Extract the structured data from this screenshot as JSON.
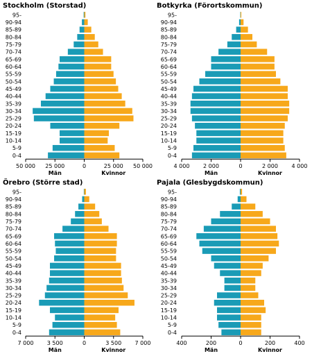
{
  "colors": {
    "men": "#1a9bb6",
    "women": "#f7a81b",
    "axis": "#000000"
  },
  "chart_data": [
    {
      "type": "bar",
      "orientation": "horizontal-pyramid",
      "title": "Stockholm (Storstad)",
      "categories": [
        "0-4",
        "5-9",
        "10-14",
        "15-19",
        "20-24",
        "25-29",
        "30-34",
        "35-39",
        "40-44",
        "45-49",
        "50-54",
        "55-59",
        "60-64",
        "65-69",
        "70-74",
        "75-79",
        "80-84",
        "85-89",
        "90-94",
        "95-"
      ],
      "series": [
        {
          "name": "Män",
          "values": [
            31000,
            27000,
            21000,
            21000,
            29000,
            43000,
            44000,
            37000,
            33000,
            29000,
            26000,
            24000,
            22000,
            21000,
            14000,
            9000,
            6000,
            4000,
            2000,
            500
          ]
        },
        {
          "name": "Kvinnor",
          "values": [
            30000,
            26000,
            20000,
            21000,
            30000,
            42000,
            41000,
            35000,
            32000,
            29000,
            27000,
            25000,
            23000,
            23000,
            16000,
            12000,
            9000,
            6000,
            3000,
            1000
          ]
        }
      ],
      "xlim": [
        -50000,
        50000
      ],
      "ticks": [
        -50000,
        -25000,
        0,
        25000,
        50000
      ],
      "tick_labels": [
        "50 000",
        "25 000",
        "0",
        "25 000",
        "50 000"
      ]
    },
    {
      "type": "bar",
      "orientation": "horizontal-pyramid",
      "title": "Botkyrka (Förortskommun)",
      "categories": [
        "0-4",
        "5-9",
        "10-14",
        "15-19",
        "20-24",
        "25-29",
        "30-34",
        "35-39",
        "40-44",
        "45-49",
        "50-54",
        "55-59",
        "60-64",
        "65-69",
        "70-74",
        "75-79",
        "80-84",
        "85-89",
        "90-94",
        "95-"
      ],
      "series": [
        {
          "name": "Män",
          "values": [
            3300,
            3200,
            3000,
            3000,
            3100,
            3300,
            3400,
            3400,
            3300,
            3200,
            2800,
            2400,
            2000,
            2000,
            1500,
            900,
            600,
            300,
            100,
            20
          ]
        },
        {
          "name": "Kvinnor",
          "values": [
            3100,
            3000,
            2900,
            2900,
            3000,
            3200,
            3300,
            3300,
            3200,
            3200,
            2700,
            2400,
            2300,
            2300,
            1800,
            1100,
            800,
            500,
            200,
            50
          ]
        }
      ],
      "xlim": [
        -4000,
        4000
      ],
      "ticks": [
        -4000,
        -2000,
        0,
        2000,
        4000
      ],
      "tick_labels": [
        "4 000",
        "2 000",
        "0",
        "2 000",
        "4 000"
      ]
    },
    {
      "type": "bar",
      "orientation": "horizontal-pyramid",
      "title": "Örebro (Större stad)",
      "categories": [
        "0-4",
        "5-9",
        "10-14",
        "15-19",
        "20-24",
        "25-29",
        "30-34",
        "35-39",
        "40-44",
        "45-49",
        "50-54",
        "55-59",
        "60-64",
        "65-69",
        "70-74",
        "75-79",
        "80-84",
        "85-89",
        "90-94",
        "95-"
      ],
      "series": [
        {
          "name": "Män",
          "values": [
            4200,
            3800,
            3500,
            4100,
            5400,
            4700,
            4500,
            4200,
            4100,
            4100,
            3600,
            3400,
            3500,
            3600,
            2600,
            1600,
            1100,
            700,
            250,
            50
          ]
        },
        {
          "name": "Kvinnor",
          "values": [
            4300,
            3900,
            3700,
            4100,
            6000,
            5200,
            4700,
            4500,
            4400,
            4400,
            3800,
            3800,
            3900,
            3900,
            2900,
            2100,
            1800,
            1300,
            600,
            200
          ]
        }
      ],
      "xlim": [
        -7000,
        7000
      ],
      "ticks": [
        -7000,
        -3500,
        0,
        3500,
        7000
      ],
      "tick_labels": [
        "7 000",
        "3 500",
        "0",
        "3 500",
        "7 000"
      ]
    },
    {
      "type": "bar",
      "orientation": "horizontal-pyramid",
      "title": "Pajala (Glesbygdskommun)",
      "categories": [
        "0-4",
        "5-9",
        "10-14",
        "15-19",
        "20-24",
        "25-29",
        "30-34",
        "35-39",
        "40-44",
        "45-49",
        "50-54",
        "55-59",
        "60-64",
        "65-69",
        "70-74",
        "75-79",
        "80-84",
        "85-89",
        "90-94",
        "95-"
      ],
      "series": [
        {
          "name": "Män",
          "values": [
            130,
            150,
            160,
            160,
            180,
            160,
            110,
            110,
            140,
            180,
            200,
            260,
            280,
            300,
            250,
            200,
            140,
            60,
            20,
            5
          ]
        },
        {
          "name": "Kvinnor",
          "values": [
            140,
            140,
            140,
            170,
            160,
            120,
            100,
            100,
            140,
            150,
            190,
            240,
            260,
            250,
            240,
            200,
            150,
            100,
            40,
            10
          ]
        }
      ],
      "xlim": [
        -400,
        400
      ],
      "ticks": [
        -400,
        -200,
        0,
        200,
        400
      ],
      "tick_labels": [
        "400",
        "200",
        "0",
        "200",
        "400"
      ]
    }
  ]
}
